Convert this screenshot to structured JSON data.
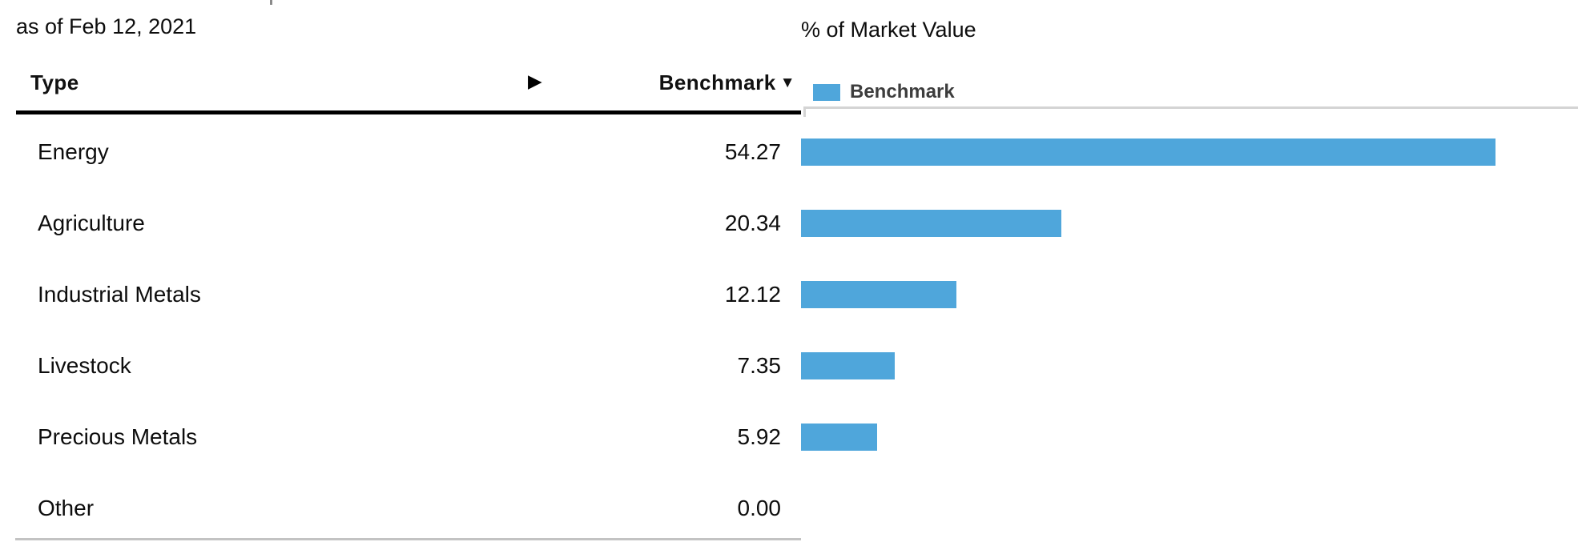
{
  "page": {
    "as_of": "as of Feb 12, 2021"
  },
  "table": {
    "header": {
      "type": "Type",
      "expand_icon": "▶",
      "benchmark": "Benchmark",
      "sort_icon": "▼"
    },
    "rows": [
      {
        "type": "Energy",
        "benchmark": "54.27"
      },
      {
        "type": "Agriculture",
        "benchmark": "20.34"
      },
      {
        "type": "Industrial Metals",
        "benchmark": "12.12"
      },
      {
        "type": "Livestock",
        "benchmark": "7.35"
      },
      {
        "type": "Precious Metals",
        "benchmark": "5.92"
      },
      {
        "type": "Other",
        "benchmark": "0.00"
      }
    ]
  },
  "chart": {
    "title": "% of Market Value",
    "legend": {
      "label": "Benchmark",
      "color": "#4FA6DB"
    }
  },
  "chart_data": {
    "type": "bar",
    "orientation": "horizontal",
    "title": "% of Market Value",
    "as_of": "as of Feb 12, 2021",
    "categories": [
      "Energy",
      "Agriculture",
      "Industrial Metals",
      "Livestock",
      "Precious Metals",
      "Other"
    ],
    "series": [
      {
        "name": "Benchmark",
        "values": [
          54.27,
          20.34,
          12.12,
          7.35,
          5.92,
          0.0
        ]
      }
    ],
    "xlim": [
      0,
      60
    ],
    "bar_color": "#4FA6DB",
    "legend_position": "top-right",
    "grid": false
  }
}
